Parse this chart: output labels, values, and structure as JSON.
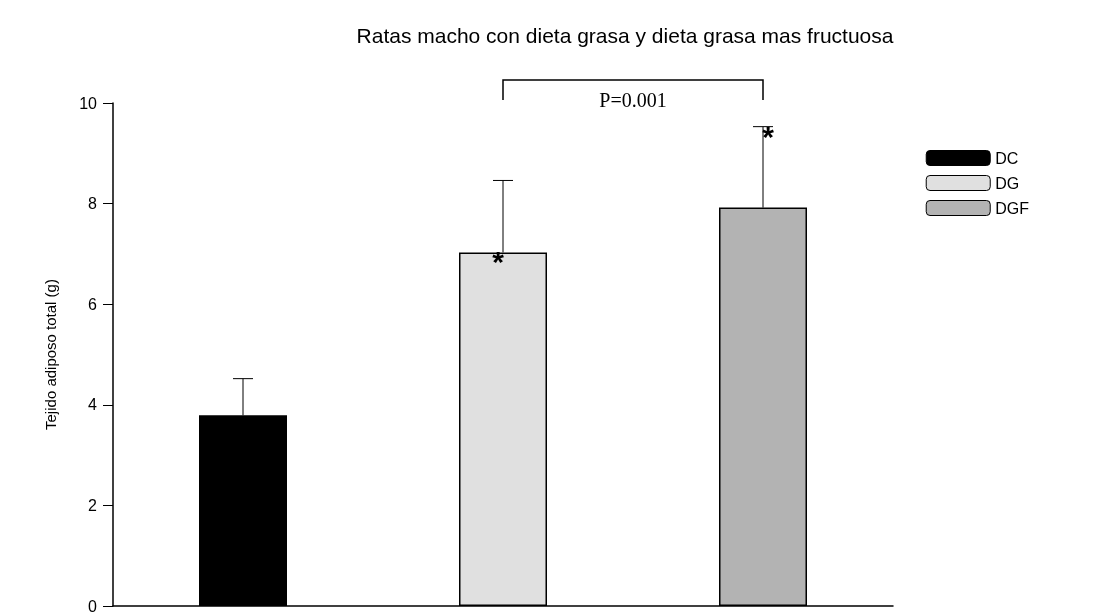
{
  "chart_data": {
    "type": "bar",
    "title": "Ratas macho con dieta grasa y dieta grasa mas fructuosa",
    "ylabel": "Tejido adiposo total (g)",
    "categories": [
      null,
      null,
      null
    ],
    "series": [
      {
        "name": "DC",
        "color": "#000000",
        "values": [
          3.79,
          null,
          null
        ],
        "errors": [
          [
            3.79,
            4.52
          ],
          null,
          null
        ]
      },
      {
        "name": "DG",
        "color": "#e0e0e0",
        "values": [
          null,
          7.03,
          null
        ],
        "errors": [
          null,
          [
            7.03,
            8.46
          ],
          null
        ]
      },
      {
        "name": "DGF",
        "color": "#b3b3b3",
        "values": [
          null,
          null,
          7.92
        ],
        "errors": [
          null,
          null,
          [
            7.92,
            9.53
          ]
        ]
      }
    ],
    "ylim": [
      0,
      10
    ],
    "yticks": [
      0,
      2,
      4,
      6,
      8,
      10
    ],
    "grid": false,
    "legend": "top right",
    "annotations": [
      "P=0.001",
      "*",
      "*"
    ]
  }
}
